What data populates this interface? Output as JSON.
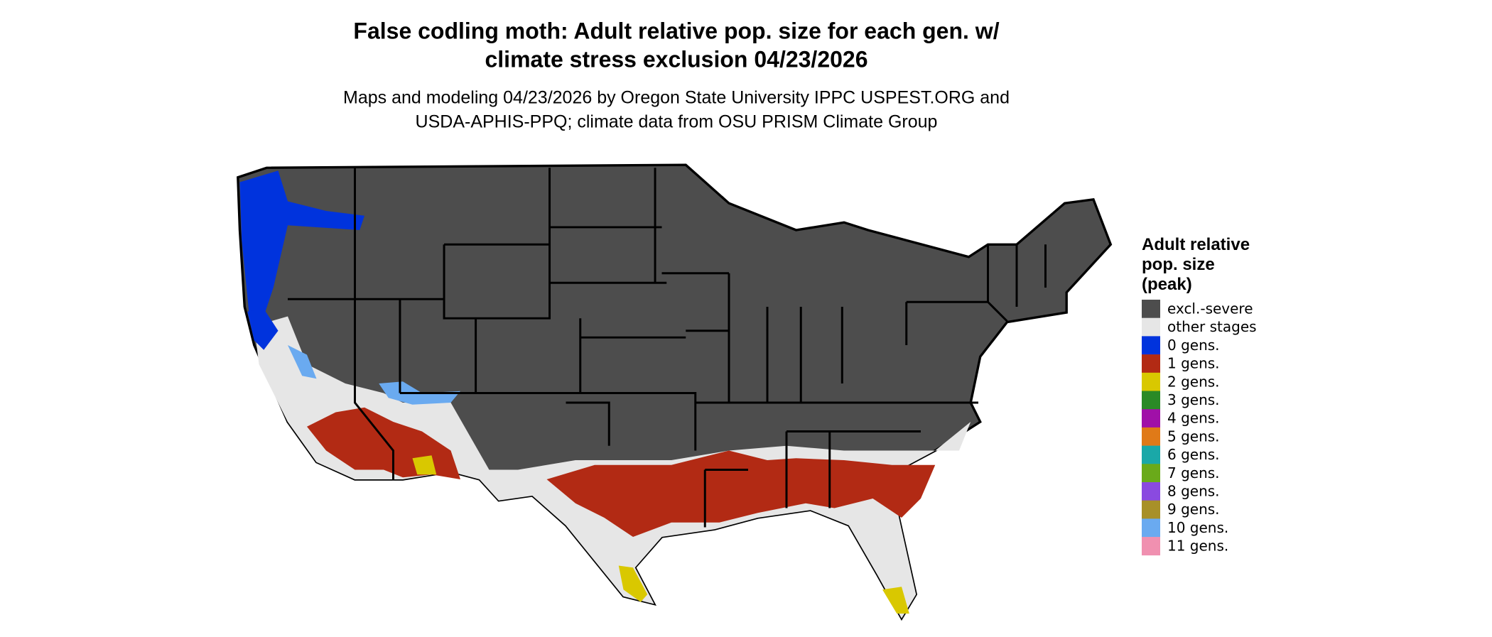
{
  "header": {
    "title": [
      "False codling moth: Adult relative pop. size for each gen. w/",
      "climate stress exclusion 04/23/2026"
    ],
    "subtitle": [
      "Maps and modeling 04/23/2026 by Oregon State University IPPC USPEST.ORG and",
      "USDA-APHIS-PPQ; climate data from OSU PRISM Climate Group"
    ]
  },
  "legend": {
    "title": [
      "Adult relative",
      "pop. size",
      "(peak)"
    ],
    "items": [
      {
        "label": "excl.-severe",
        "color": "#4d4d4d"
      },
      {
        "label": "other stages",
        "color": "#e6e6e6"
      },
      {
        "label": "0 gens.",
        "color": "#0033dd"
      },
      {
        "label": "1 gens.",
        "color": "#b22a14"
      },
      {
        "label": "2 gens.",
        "color": "#d9c800"
      },
      {
        "label": "3 gens.",
        "color": "#2a8a26"
      },
      {
        "label": "4 gens.",
        "color": "#a010a8"
      },
      {
        "label": "5 gens.",
        "color": "#e07a18"
      },
      {
        "label": "6 gens.",
        "color": "#1aa8a8"
      },
      {
        "label": "7 gens.",
        "color": "#6aaa1a"
      },
      {
        "label": "8 gens.",
        "color": "#8a4ae0"
      },
      {
        "label": "9 gens.",
        "color": "#a89028"
      },
      {
        "label": "10 gens.",
        "color": "#6aaaf0"
      },
      {
        "label": "11 gens.",
        "color": "#f090b0"
      }
    ]
  }
}
